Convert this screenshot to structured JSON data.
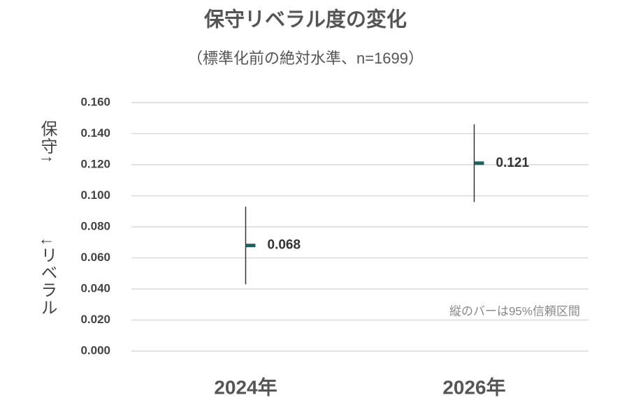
{
  "chart_data": {
    "type": "errorbar",
    "title": "保守リベラル度の変化",
    "subtitle": "（標準化前の絶対水準、n=1699）",
    "ylabel_upper": "保守↑",
    "ylabel_lower": "↓リベラル",
    "annotation": "縦のバーは95%信頼区間",
    "categories": [
      "2024年",
      "2026年"
    ],
    "series": [
      {
        "color": "#1f5f5f",
        "values": [
          0.068,
          0.121
        ],
        "errors": [
          0.025,
          0.025
        ]
      }
    ],
    "errorbar_color": "#333333",
    "ylim": [
      0,
      0.16
    ],
    "yticks": [
      {
        "value": 0,
        "label": "0.000"
      },
      {
        "value": 0.02,
        "label": "0.020"
      },
      {
        "value": 0.04,
        "label": "0.040"
      },
      {
        "value": 0.06,
        "label": "0.060"
      },
      {
        "value": 0.08,
        "label": "0.080"
      },
      {
        "value": 0.1,
        "label": "0.100"
      },
      {
        "value": 0.12,
        "label": "0.120"
      },
      {
        "value": 0.14,
        "label": "0.140"
      },
      {
        "value": 0.16,
        "label": "0.160"
      }
    ],
    "grid": true
  }
}
